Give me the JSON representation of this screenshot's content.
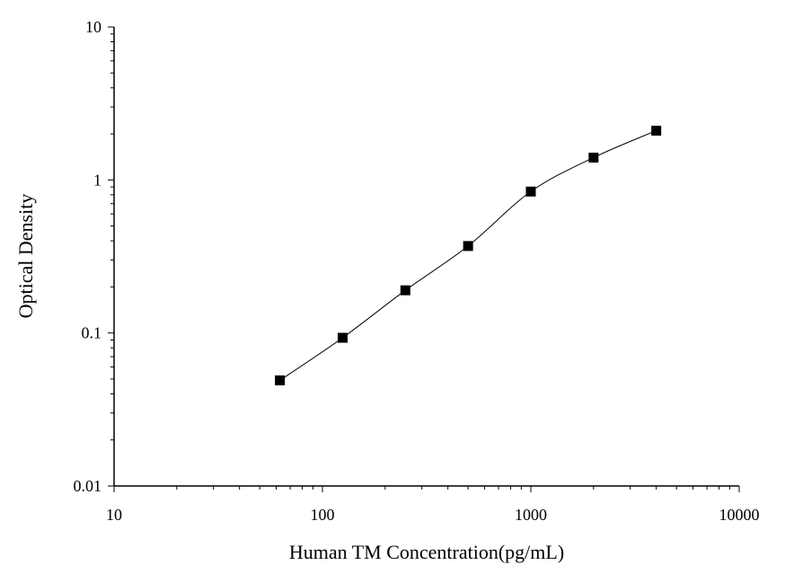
{
  "chart_data": {
    "type": "scatter",
    "title": "",
    "xlabel": "Human TM Concentration(pg/mL)",
    "ylabel": "Optical Density",
    "xscale": "log",
    "yscale": "log",
    "xlim": [
      10,
      10000
    ],
    "ylim": [
      0.01,
      10
    ],
    "xticks": [
      "10",
      "100",
      "1000",
      "10000"
    ],
    "yticks": [
      "10",
      "1",
      "0.1",
      "0.01"
    ],
    "grid": false,
    "legend": "none",
    "series": [
      {
        "x": [
          62.5,
          125,
          250,
          500,
          1000,
          2000,
          4000
        ],
        "y": [
          0.049,
          0.093,
          0.19,
          0.37,
          0.84,
          1.4,
          2.1
        ],
        "marker": "square",
        "line": "smooth",
        "color": "#000000"
      }
    ]
  }
}
